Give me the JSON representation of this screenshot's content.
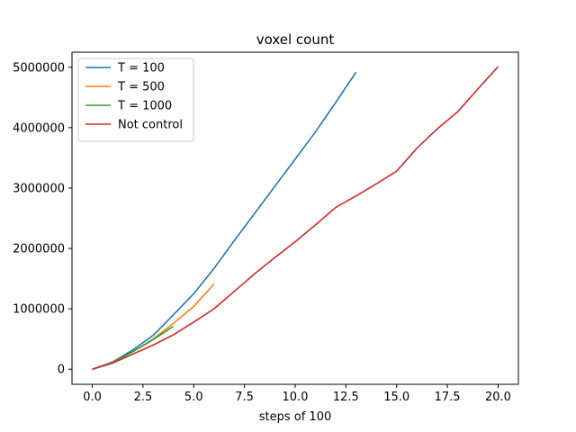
{
  "chart_data": {
    "type": "line",
    "title": "voxel count",
    "xlabel": "steps of 100",
    "ylabel": "",
    "xlim": [
      -1.0,
      21.0
    ],
    "ylim": [
      -250000,
      5250000
    ],
    "xticks": [
      0,
      2.5,
      5,
      7.5,
      10,
      12.5,
      15,
      17.5,
      20
    ],
    "xtick_labels": [
      "0.0",
      "2.5",
      "5.0",
      "7.5",
      "10.0",
      "12.5",
      "15.0",
      "17.5",
      "20.0"
    ],
    "yticks": [
      0,
      1000000,
      2000000,
      3000000,
      4000000,
      5000000
    ],
    "ytick_labels": [
      "0",
      "1000000",
      "2000000",
      "3000000",
      "4000000",
      "5000000"
    ],
    "grid": false,
    "legend_position": "top-left",
    "series": [
      {
        "name": "T = 100",
        "color": "#1f77b4",
        "x": [
          0,
          1,
          2,
          3,
          4,
          5,
          6,
          7,
          8,
          9,
          10,
          11,
          12,
          13
        ],
        "y": [
          0,
          120000,
          320000,
          560000,
          900000,
          1250000,
          1670000,
          2130000,
          2580000,
          3030000,
          3480000,
          3930000,
          4420000,
          4920000
        ]
      },
      {
        "name": "T = 500",
        "color": "#ff7f0e",
        "x": [
          0,
          1,
          2,
          3,
          4,
          5,
          6
        ],
        "y": [
          0,
          110000,
          290000,
          500000,
          760000,
          1040000,
          1410000
        ]
      },
      {
        "name": "T = 1000",
        "color": "#2ca02c",
        "x": [
          0,
          1,
          2,
          3,
          4
        ],
        "y": [
          0,
          105000,
          290000,
          490000,
          710000
        ]
      },
      {
        "name": "Not control",
        "color": "#d62728",
        "x": [
          0,
          1,
          2,
          3,
          4,
          5,
          6,
          7,
          8,
          9,
          10,
          11,
          12,
          13,
          14,
          15,
          16,
          17,
          18,
          19,
          20
        ],
        "y": [
          0,
          100000,
          250000,
          400000,
          570000,
          780000,
          1000000,
          1290000,
          1580000,
          1850000,
          2110000,
          2390000,
          2680000,
          2870000,
          3070000,
          3280000,
          3660000,
          3980000,
          4260000,
          4640000,
          5010000
        ]
      }
    ]
  }
}
